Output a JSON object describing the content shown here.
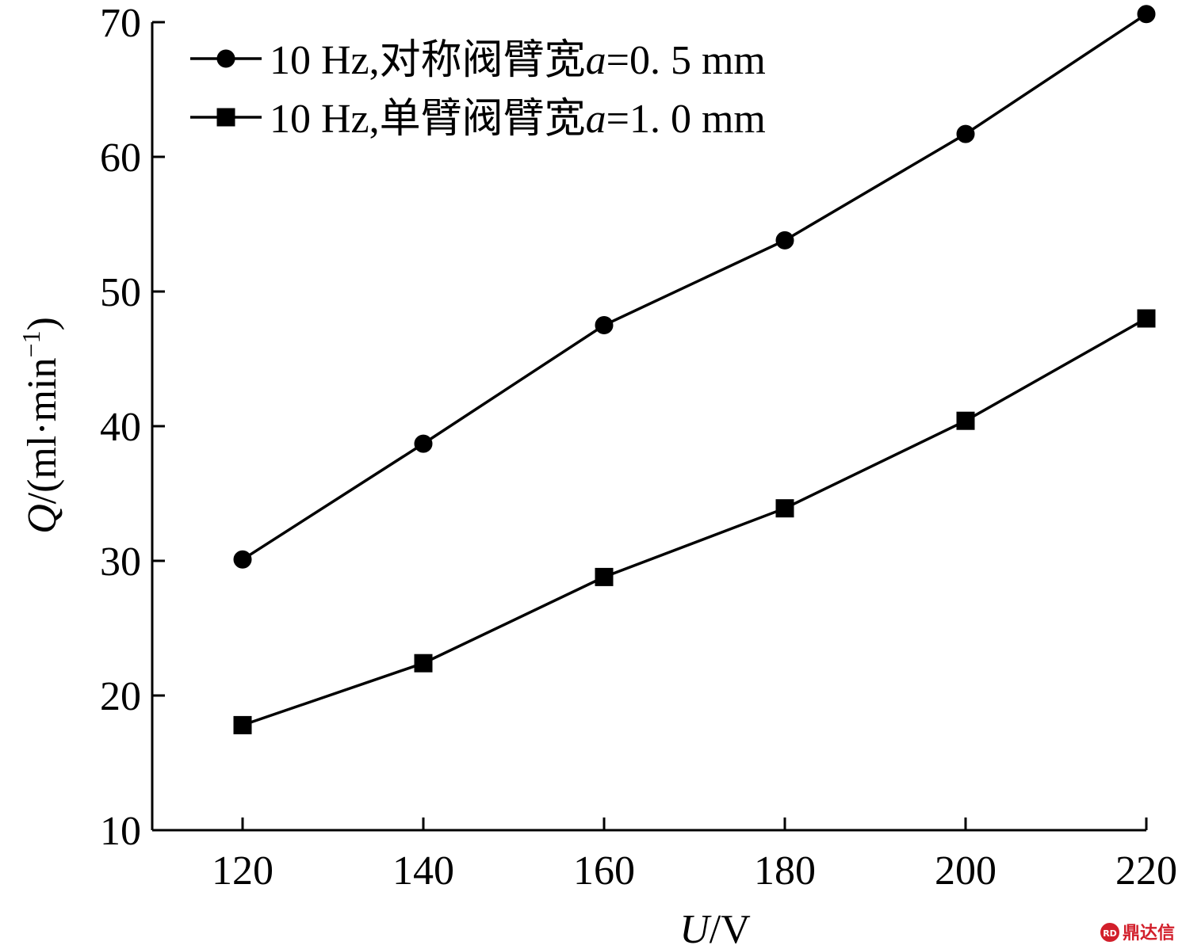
{
  "chart_data": {
    "type": "line",
    "x": [
      120,
      140,
      160,
      180,
      200,
      220
    ],
    "series": [
      {
        "name": "10 Hz,对称阀臂宽a=0. 5 mm",
        "marker": "circle",
        "values": [
          30.1,
          38.7,
          47.5,
          53.8,
          61.7,
          70.6
        ]
      },
      {
        "name": "10 Hz,单臂阀臂宽a=1. 0 mm",
        "marker": "square",
        "values": [
          17.8,
          22.4,
          28.8,
          33.9,
          40.4,
          48.0
        ]
      }
    ],
    "xlim": [
      110,
      220
    ],
    "ylim": [
      10,
      70
    ],
    "x_ticks": [
      120,
      140,
      160,
      180,
      200,
      220
    ],
    "y_ticks": [
      10,
      20,
      30,
      40,
      50,
      60,
      70
    ],
    "xlabel": {
      "var": "U",
      "unit": "/V"
    },
    "ylabel": {
      "var": "Q",
      "unit": "/(ml·min",
      "exp": "−1",
      "close": ")"
    },
    "legend": {
      "position": "top-left",
      "entries": [
        {
          "prefix": "10 Hz,对称阀臂宽",
          "var": "a",
          "suffix": "=0. 5 mm"
        },
        {
          "prefix": "10 Hz,单臂阀臂宽",
          "var": "a",
          "suffix": "=1. 0 mm"
        }
      ]
    },
    "grid": false,
    "line_color": "#000000"
  },
  "watermark": {
    "logo_text": "RD",
    "text": "鼎达信",
    "color": "#d21f2b"
  }
}
